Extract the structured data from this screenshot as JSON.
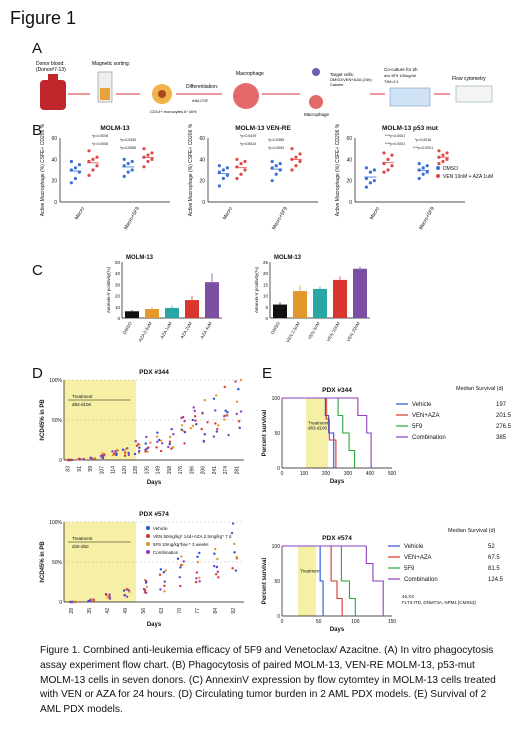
{
  "figure_title": "Figure 1",
  "panels": {
    "a": "A",
    "b": "B",
    "c": "C",
    "d": "D",
    "e": "E"
  },
  "flowchart": {
    "steps": [
      "Donor blood:",
      "Magnetic sorting:",
      "Differentiation:",
      "Macrophage",
      "Target cells:",
      "Co-culture for 2h",
      "Flow cytometry"
    ],
    "donor_sub": "(Donor#7-13)",
    "cd14_note": "CD14+ monocytes 6~16%",
    "mcsf": "rhM-CSF",
    "target_sub1": "DMSO/VEN+AZA (24h)",
    "target_sub2": "Calcein",
    "macrophage2": "Macrophage",
    "coculture_sub1": "w/o 5F9 100ug/ml",
    "coculture_sub2": "T/M=2:1"
  },
  "chart_data": [
    {
      "type": "scatter",
      "title": "MOLM-13",
      "ylabel": "Active Macrophage (%) CSFE+ CD206 %",
      "categories": [
        "Macro",
        "Macro+5F9"
      ],
      "series": [
        {
          "name": "DMSO",
          "color": "#3b6fd6"
        },
        {
          "name": "VEN 10nM + AZA 1uM",
          "color": "#e04848"
        }
      ],
      "ylim": [
        0,
        60
      ],
      "yticks": [
        "0",
        "20",
        "40",
        "60"
      ],
      "pvalues": [
        "*p=0.0006",
        "*p=0.0335",
        "*p=0.0008",
        "*p=0.0085"
      ]
    },
    {
      "type": "scatter",
      "title": "MOLM-13 VEN-RE",
      "ylabel": "Active Macrophage (%) CSFE+ CD206 %",
      "categories": [
        "Macro",
        "Macro+5F9"
      ],
      "ylim": [
        0,
        60
      ],
      "yticks": [
        "0",
        "20",
        "40",
        "60"
      ],
      "pvalues": [
        "*p=0.0419",
        "*p=0.0385",
        "*p=0.8024",
        "*p=0.0094"
      ]
    },
    {
      "type": "scatter",
      "title": "MOLM-13 p53 mut",
      "ylabel": "Active Macrophage (%) CSFE+ CD206 %",
      "categories": [
        "Macro",
        "Macro+5F9"
      ],
      "ylim": [
        0,
        60
      ],
      "yticks": [
        "0",
        "20",
        "40",
        "60"
      ],
      "pvalues": [
        "****p<0.0001",
        "*p=0.0016",
        "****p<0.0001",
        "****p<0.0001"
      ]
    },
    {
      "type": "bar",
      "title": "MOLM-13",
      "ylabel": "Annexin-V positivity(%)",
      "categories": [
        "DMSO",
        "AZA 0.5uM",
        "AZA 1uM",
        "AZA 2uM",
        "AZA 4uM"
      ],
      "values": [
        6,
        8,
        9,
        16,
        32
      ],
      "errors": [
        1,
        1.5,
        2,
        4,
        8
      ],
      "colors": [
        "#111111",
        "#e3962a",
        "#2aa6a6",
        "#d8362f",
        "#7b4fa3"
      ],
      "ylim": [
        0,
        50
      ],
      "yticks": [
        "0",
        "10",
        "20",
        "30",
        "40",
        "50"
      ]
    },
    {
      "type": "bar",
      "title": "MOLM-13",
      "ylabel": "Annexin-V positivity(%)",
      "categories": [
        "DMSO",
        "VEN 2.5nM",
        "VEN 5nM",
        "VEN 10nM",
        "VEN 20nM"
      ],
      "values": [
        6,
        12,
        13,
        17,
        22
      ],
      "errors": [
        1,
        2.5,
        1,
        1.5,
        1
      ],
      "colors": [
        "#111111",
        "#e3962a",
        "#2aa6a6",
        "#d8362f",
        "#7b4fa3"
      ],
      "ylim": [
        0,
        25
      ],
      "yticks": [
        "0",
        "5",
        "10",
        "15",
        "20",
        "25"
      ]
    },
    {
      "type": "scatter",
      "title": "PDX #344",
      "ylabel": "hCD45% in PB",
      "xlabel": "Days",
      "xticks": [
        "83",
        "91",
        "99",
        "107",
        "114",
        "120",
        "128",
        "135",
        "149",
        "158",
        "176",
        "196",
        "206",
        "241",
        "274",
        "281"
      ],
      "yticks": [
        "0",
        "50%",
        "100%"
      ],
      "treatment": "Treatment",
      "treatment_range": "d83-d106"
    },
    {
      "type": "line",
      "title": "PDX #344",
      "ylabel": "Percent survival",
      "xlabel": "Days",
      "xlim": [
        0,
        500
      ],
      "ylim": [
        0,
        100
      ],
      "xticks": [
        "0",
        "100",
        "200",
        "300",
        "400",
        "500"
      ],
      "yticks": [
        "0",
        "50",
        "100"
      ],
      "treatment": "Treatment",
      "treatment_range": "d83-d106",
      "legend_title": "Median Survival (d)",
      "series": [
        {
          "name": "Vehicle",
          "median": "197",
          "color": "#2b4fd6",
          "x": [
            0,
            183,
            197,
            212,
            235
          ],
          "y": [
            100,
            100,
            75,
            50,
            0
          ]
        },
        {
          "name": "VEN+AZA",
          "median": "201.5",
          "color": "#d8362f",
          "x": [
            0,
            190,
            201,
            215,
            245
          ],
          "y": [
            100,
            100,
            70,
            40,
            0
          ]
        },
        {
          "name": "5F9",
          "median": "276.5",
          "color": "#2aa63a",
          "x": [
            0,
            225,
            255,
            276,
            305,
            330
          ],
          "y": [
            100,
            100,
            75,
            50,
            25,
            0
          ]
        },
        {
          "name": "Combination",
          "median": "385",
          "color": "#8e3fc2",
          "x": [
            0,
            285,
            345,
            385,
            405
          ],
          "y": [
            100,
            100,
            75,
            50,
            0
          ]
        }
      ]
    },
    {
      "type": "scatter",
      "title": "PDX #574",
      "ylabel": "hCD45% in PB",
      "xlabel": "Days",
      "xticks": [
        "28",
        "35",
        "42",
        "49",
        "56",
        "63",
        "70",
        "77",
        "84",
        "92"
      ],
      "yticks": [
        "0",
        "50%",
        "100%"
      ],
      "treatment": "Treatment",
      "treatment_range": "d26-d50",
      "legend": [
        {
          "name": "Vehicle",
          "color": "#2b4fd6"
        },
        {
          "name": "VEN 50mg/kg* 14d+AZA 2.5mg/kg* 7 d",
          "color": "#d8362f"
        },
        {
          "name": "5F9 10mg/kg*biw * 3 weeks",
          "color": "#e3962a"
        },
        {
          "name": "Combination",
          "color": "#8e3fc2"
        }
      ]
    },
    {
      "type": "line",
      "title": "PDX #574",
      "ylabel": "Percent survival",
      "xlabel": "Days",
      "xlim": [
        0,
        150
      ],
      "ylim": [
        0,
        100
      ],
      "xticks": [
        "0",
        "50",
        "100",
        "150"
      ],
      "yticks": [
        "0",
        "50",
        "100"
      ],
      "treatment": "Treatment",
      "legend_title": "Median Survival (d)",
      "note": "46,XX",
      "note2": "FLT3-ITD, DNMT3A, NPM1 [CMS53]",
      "series": [
        {
          "name": "Vehicle",
          "median": "52",
          "color": "#2b4fd6",
          "x": [
            0,
            48,
            52,
            56
          ],
          "y": [
            100,
            100,
            50,
            0
          ]
        },
        {
          "name": "VEN+AZA",
          "median": "67.5",
          "color": "#d8362f",
          "x": [
            0,
            60,
            67,
            75,
            82
          ],
          "y": [
            100,
            100,
            50,
            25,
            0
          ]
        },
        {
          "name": "5F9",
          "median": "81.5",
          "color": "#2aa63a",
          "x": [
            0,
            70,
            81,
            92,
            100
          ],
          "y": [
            100,
            100,
            50,
            25,
            0
          ]
        },
        {
          "name": "Combination",
          "median": "124.5",
          "color": "#8e3fc2",
          "x": [
            0,
            105,
            115,
            124,
            138
          ],
          "y": [
            100,
            100,
            75,
            50,
            0
          ]
        }
      ]
    }
  ],
  "caption": "Figure 1. Combined anti-leukemia efficacy of 5F9 and Venetoclax/ Azacitne. (A) In vitro phagocytosis assay experiment flow chart. (B) Phagocytosis of paired MOLM-13, VEN-RE MOLM-13, p53-mut MOLM-13 cells in seven donors. (C) AnnexinV expression by flow cytomtey in MOLM-13 cells treated with VEN or AZA for 24 hours. (D) Circulating tumor burden in 2 AML PDX models. (E) Survival of 2 AML PDX models."
}
